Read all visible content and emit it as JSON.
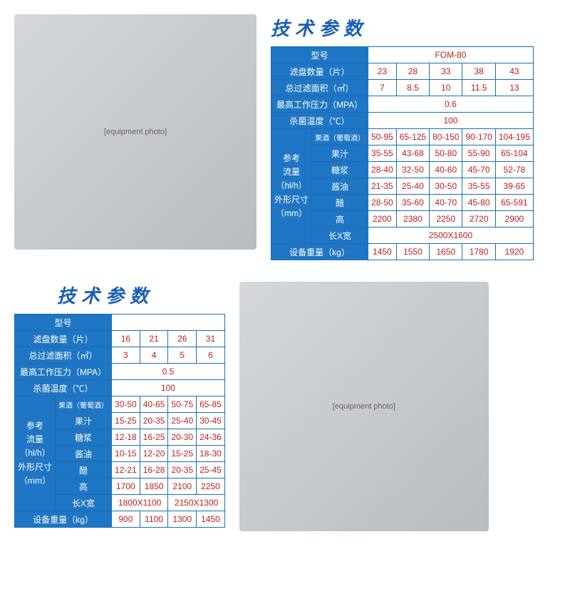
{
  "title": "技术参数",
  "table1": {
    "model_label": "型号",
    "model": "FOM-80",
    "r1_label": "滤盘数量（片）",
    "r1": [
      "23",
      "28",
      "33",
      "38",
      "43"
    ],
    "r2_label": "总过滤面积（㎡）",
    "r2": [
      "7",
      "8.5",
      "10",
      "11.5",
      "13"
    ],
    "r3_label": "最高工作压力（MPA）",
    "r3": "0.6",
    "r4_label": "杀菌温度（℃）",
    "r4": "100",
    "group_label": "参考\n流量\n（hl/h）\n外形尺寸\n（mm）",
    "sub_labels": [
      "果酒（葡萄酒）",
      "果汁",
      "糖浆",
      "酱油",
      "醋",
      "高",
      "长X宽"
    ],
    "sub_rows": [
      [
        "50-95",
        "65-125",
        "80-150",
        "90-170",
        "104-195"
      ],
      [
        "35-55",
        "43-68",
        "50-80",
        "55-90",
        "65-104"
      ],
      [
        "28-40",
        "32-50",
        "40-60",
        "45-70",
        "52-78"
      ],
      [
        "21-35",
        "25-40",
        "30-50",
        "35-55",
        "39-65"
      ],
      [
        "28-50",
        "35-60",
        "40-70",
        "45-80",
        "65-591"
      ],
      [
        "2200",
        "2380",
        "2250",
        "2720",
        "2900"
      ]
    ],
    "lxw": "2500X1600",
    "w_label": "设备重量（kg）",
    "w": [
      "1450",
      "1550",
      "1650",
      "1780",
      "1920"
    ]
  },
  "table2": {
    "model_label": "型号",
    "r1_label": "滤盘数量（片）",
    "r1": [
      "16",
      "21",
      "26",
      "31"
    ],
    "r2_label": "总过滤面积（㎡）",
    "r2": [
      "3",
      "4",
      "5",
      "6"
    ],
    "r3_label": "最高工作压力（MPA）",
    "r3": "0.5",
    "r4_label": "杀菌温度（℃）",
    "r4": "100",
    "group_label": "参考\n流量\n（hl/h）\n外形尺寸\n（mm）",
    "sub_labels": [
      "果酒（葡萄酒）",
      "果汁",
      "糖浆",
      "酱油",
      "醋",
      "高",
      "长X宽"
    ],
    "sub_rows": [
      [
        "30-50",
        "40-65",
        "50-75",
        "65-85"
      ],
      [
        "15-25",
        "20-35",
        "25-40",
        "30-45"
      ],
      [
        "12-18",
        "16-25",
        "20-30",
        "24-36"
      ],
      [
        "10-15",
        "12-20",
        "15-25",
        "18-30"
      ],
      [
        "12-21",
        "16-28",
        "20-35",
        "25-45"
      ],
      [
        "1700",
        "1850",
        "2100",
        "2250"
      ]
    ],
    "lxw": [
      "1800X1100",
      "2150X1300"
    ],
    "w_label": "设备重量（kg）",
    "w": [
      "900",
      "1100",
      "1300",
      "1450"
    ]
  },
  "colors": {
    "header_bg": "#1f76c4",
    "header_fg": "#ffffff",
    "border": "#1a6eb8",
    "data_fg": "#c02020",
    "title_fg": "#1a5fb4"
  },
  "img_placeholder": "[equipment photo]"
}
